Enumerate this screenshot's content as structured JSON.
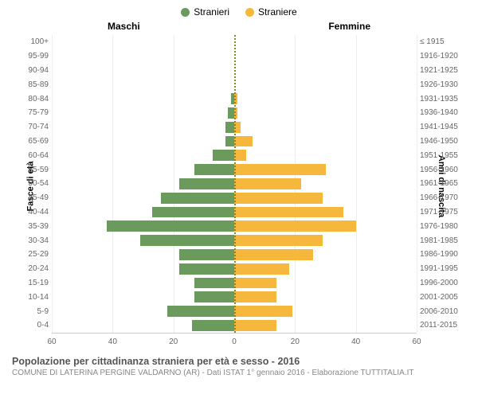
{
  "legend": {
    "male": {
      "label": "Stranieri",
      "color": "#6a9b5d"
    },
    "female": {
      "label": "Straniere",
      "color": "#f5b83d"
    }
  },
  "panel_labels": {
    "left": "Maschi",
    "right": "Femmine"
  },
  "yaxis_left_title": "Fasce di età",
  "yaxis_right_title": "Anni di nascita",
  "xmax": 60,
  "xticks_left": [
    60,
    40,
    20,
    0
  ],
  "xticks_right": [
    0,
    20,
    40,
    60
  ],
  "grid_steps": [
    0,
    20,
    40,
    60
  ],
  "grid_color": "#eeeeee",
  "rows": [
    {
      "age": "100+",
      "birth": "≤ 1915",
      "m": 0,
      "f": 0
    },
    {
      "age": "95-99",
      "birth": "1916-1920",
      "m": 0,
      "f": 0
    },
    {
      "age": "90-94",
      "birth": "1921-1925",
      "m": 0,
      "f": 0
    },
    {
      "age": "85-89",
      "birth": "1926-1930",
      "m": 0,
      "f": 0
    },
    {
      "age": "80-84",
      "birth": "1931-1935",
      "m": 1,
      "f": 1
    },
    {
      "age": "75-79",
      "birth": "1936-1940",
      "m": 2,
      "f": 1
    },
    {
      "age": "70-74",
      "birth": "1941-1945",
      "m": 3,
      "f": 2
    },
    {
      "age": "65-69",
      "birth": "1946-1950",
      "m": 3,
      "f": 6
    },
    {
      "age": "60-64",
      "birth": "1951-1955",
      "m": 7,
      "f": 4
    },
    {
      "age": "55-59",
      "birth": "1956-1960",
      "m": 13,
      "f": 30
    },
    {
      "age": "50-54",
      "birth": "1961-1965",
      "m": 18,
      "f": 22
    },
    {
      "age": "45-49",
      "birth": "1966-1970",
      "m": 24,
      "f": 29
    },
    {
      "age": "40-44",
      "birth": "1971-1975",
      "m": 27,
      "f": 36
    },
    {
      "age": "35-39",
      "birth": "1976-1980",
      "m": 42,
      "f": 40
    },
    {
      "age": "30-34",
      "birth": "1981-1985",
      "m": 31,
      "f": 29
    },
    {
      "age": "25-29",
      "birth": "1986-1990",
      "m": 18,
      "f": 26
    },
    {
      "age": "20-24",
      "birth": "1991-1995",
      "m": 18,
      "f": 18
    },
    {
      "age": "15-19",
      "birth": "1996-2000",
      "m": 13,
      "f": 14
    },
    {
      "age": "10-14",
      "birth": "2001-2005",
      "m": 13,
      "f": 14
    },
    {
      "age": "5-9",
      "birth": "2006-2010",
      "m": 22,
      "f": 19
    },
    {
      "age": "0-4",
      "birth": "2011-2015",
      "m": 14,
      "f": 14
    }
  ],
  "footer": {
    "title": "Popolazione per cittadinanza straniera per età e sesso - 2016",
    "sub": "COMUNE DI LATERINA PERGINE VALDARNO (AR) - Dati ISTAT 1° gennaio 2016 - Elaborazione TUTTITALIA.IT"
  },
  "background_color": "#ffffff",
  "bar_colors": {
    "male": "#6a9b5d",
    "female": "#f5b83d"
  }
}
